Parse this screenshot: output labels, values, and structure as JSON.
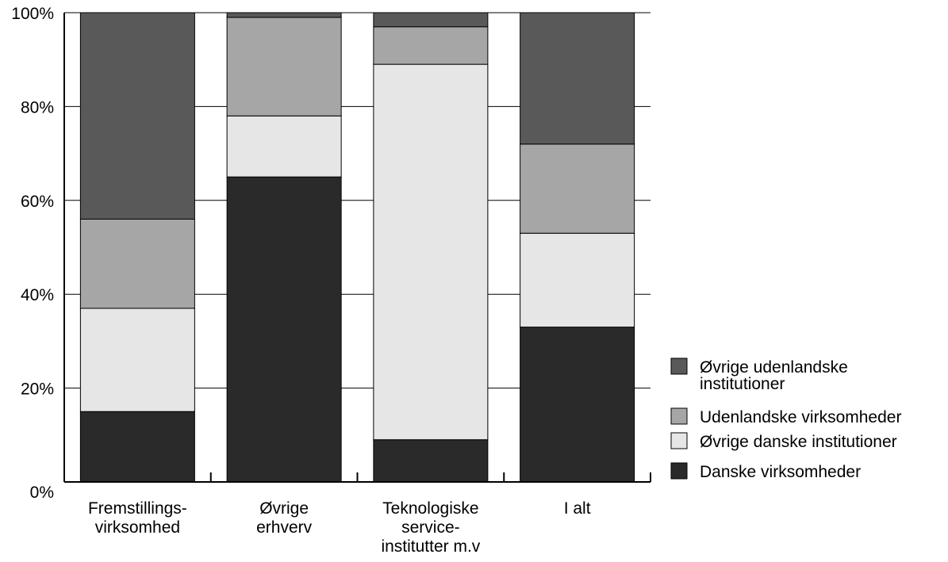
{
  "chart_data": {
    "type": "bar",
    "stacked": true,
    "normalized_percent": true,
    "categories": [
      [
        "Fremstillings-",
        "virksomhed"
      ],
      [
        "Øvrige",
        "erhverv"
      ],
      [
        "Teknologiske",
        "service-",
        "institutter m.v"
      ],
      [
        "I alt"
      ]
    ],
    "series": [
      {
        "name": "Danske virksomheder",
        "color": "#2a2a2a",
        "values": [
          15,
          65,
          9,
          33
        ]
      },
      {
        "name": "Øvrige danske institutioner",
        "color": "#e6e6e6",
        "values": [
          22,
          13,
          80,
          20
        ]
      },
      {
        "name": "Udenlandske virksomheder",
        "color": "#a6a6a6",
        "values": [
          19,
          21,
          8,
          19
        ]
      },
      {
        "name": "Øvrige udenlandske institutioner",
        "color": "#595959",
        "values": [
          44,
          1,
          3,
          28
        ]
      }
    ],
    "legend_items": [
      {
        "lines": [
          "Øvrige udenlandske",
          "institutioner"
        ],
        "color": "#595959"
      },
      {
        "lines": [
          "Udenlandske virksomheder"
        ],
        "color": "#a6a6a6"
      },
      {
        "lines": [
          "Øvrige danske institutioner"
        ],
        "color": "#e6e6e6"
      },
      {
        "lines": [
          "Danske virksomheder"
        ],
        "color": "#2a2a2a"
      }
    ],
    "y_ticks": [
      "0%",
      "20%",
      "40%",
      "60%",
      "80%",
      "100%"
    ],
    "ylim": [
      0,
      100
    ],
    "grid": true,
    "legend_position": "right",
    "title": "",
    "xlabel": "",
    "ylabel": ""
  }
}
